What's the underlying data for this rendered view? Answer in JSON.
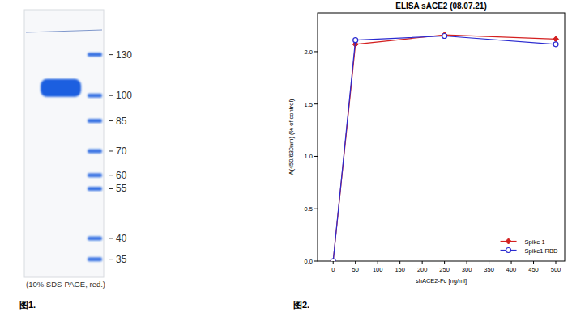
{
  "chart_data": [
    {
      "type": "gel",
      "subtitle": "(10% SDS-PAGE, red.)",
      "caption": "图1.",
      "log": "y",
      "ylim": [
        150,
        33
      ],
      "yticks": [
        130,
        100,
        85,
        70,
        60,
        55,
        40,
        35
      ],
      "values": [
        105
      ],
      "color": "#1a5ee0"
    },
    {
      "type": "line",
      "title": "ELISA sACE2 (08.07.21)",
      "caption": "图2.",
      "x_label": "shACE2-Fc [ng/ml]",
      "y_label": "A(450/630nm) (% of control)",
      "x": [
        0,
        50,
        250,
        500
      ],
      "series": [
        {
          "name": "Spike 1",
          "color": "#d42020",
          "marker": "diamond",
          "values": [
            0,
            2.07,
            2.16,
            2.12
          ]
        },
        {
          "name": "Spike1 RBD",
          "color": "#2a2ad0",
          "marker": "circle",
          "values": [
            0,
            2.11,
            2.15,
            2.07
          ]
        }
      ],
      "xlim": [
        -35,
        520
      ],
      "xticks": [
        0,
        50,
        100,
        150,
        200,
        250,
        300,
        350,
        400,
        450,
        500
      ],
      "ylim": [
        0,
        2.37
      ],
      "yticks": [
        {
          "value": 0,
          "label": "0.0"
        },
        {
          "value": 0.5,
          "label": "0.5"
        },
        {
          "value": 1,
          "label": "1.0"
        },
        {
          "value": 1.5,
          "label": "1.5"
        },
        {
          "value": 2,
          "label": "2.0"
        }
      ],
      "grid": false,
      "legend": "lower right"
    }
  ]
}
